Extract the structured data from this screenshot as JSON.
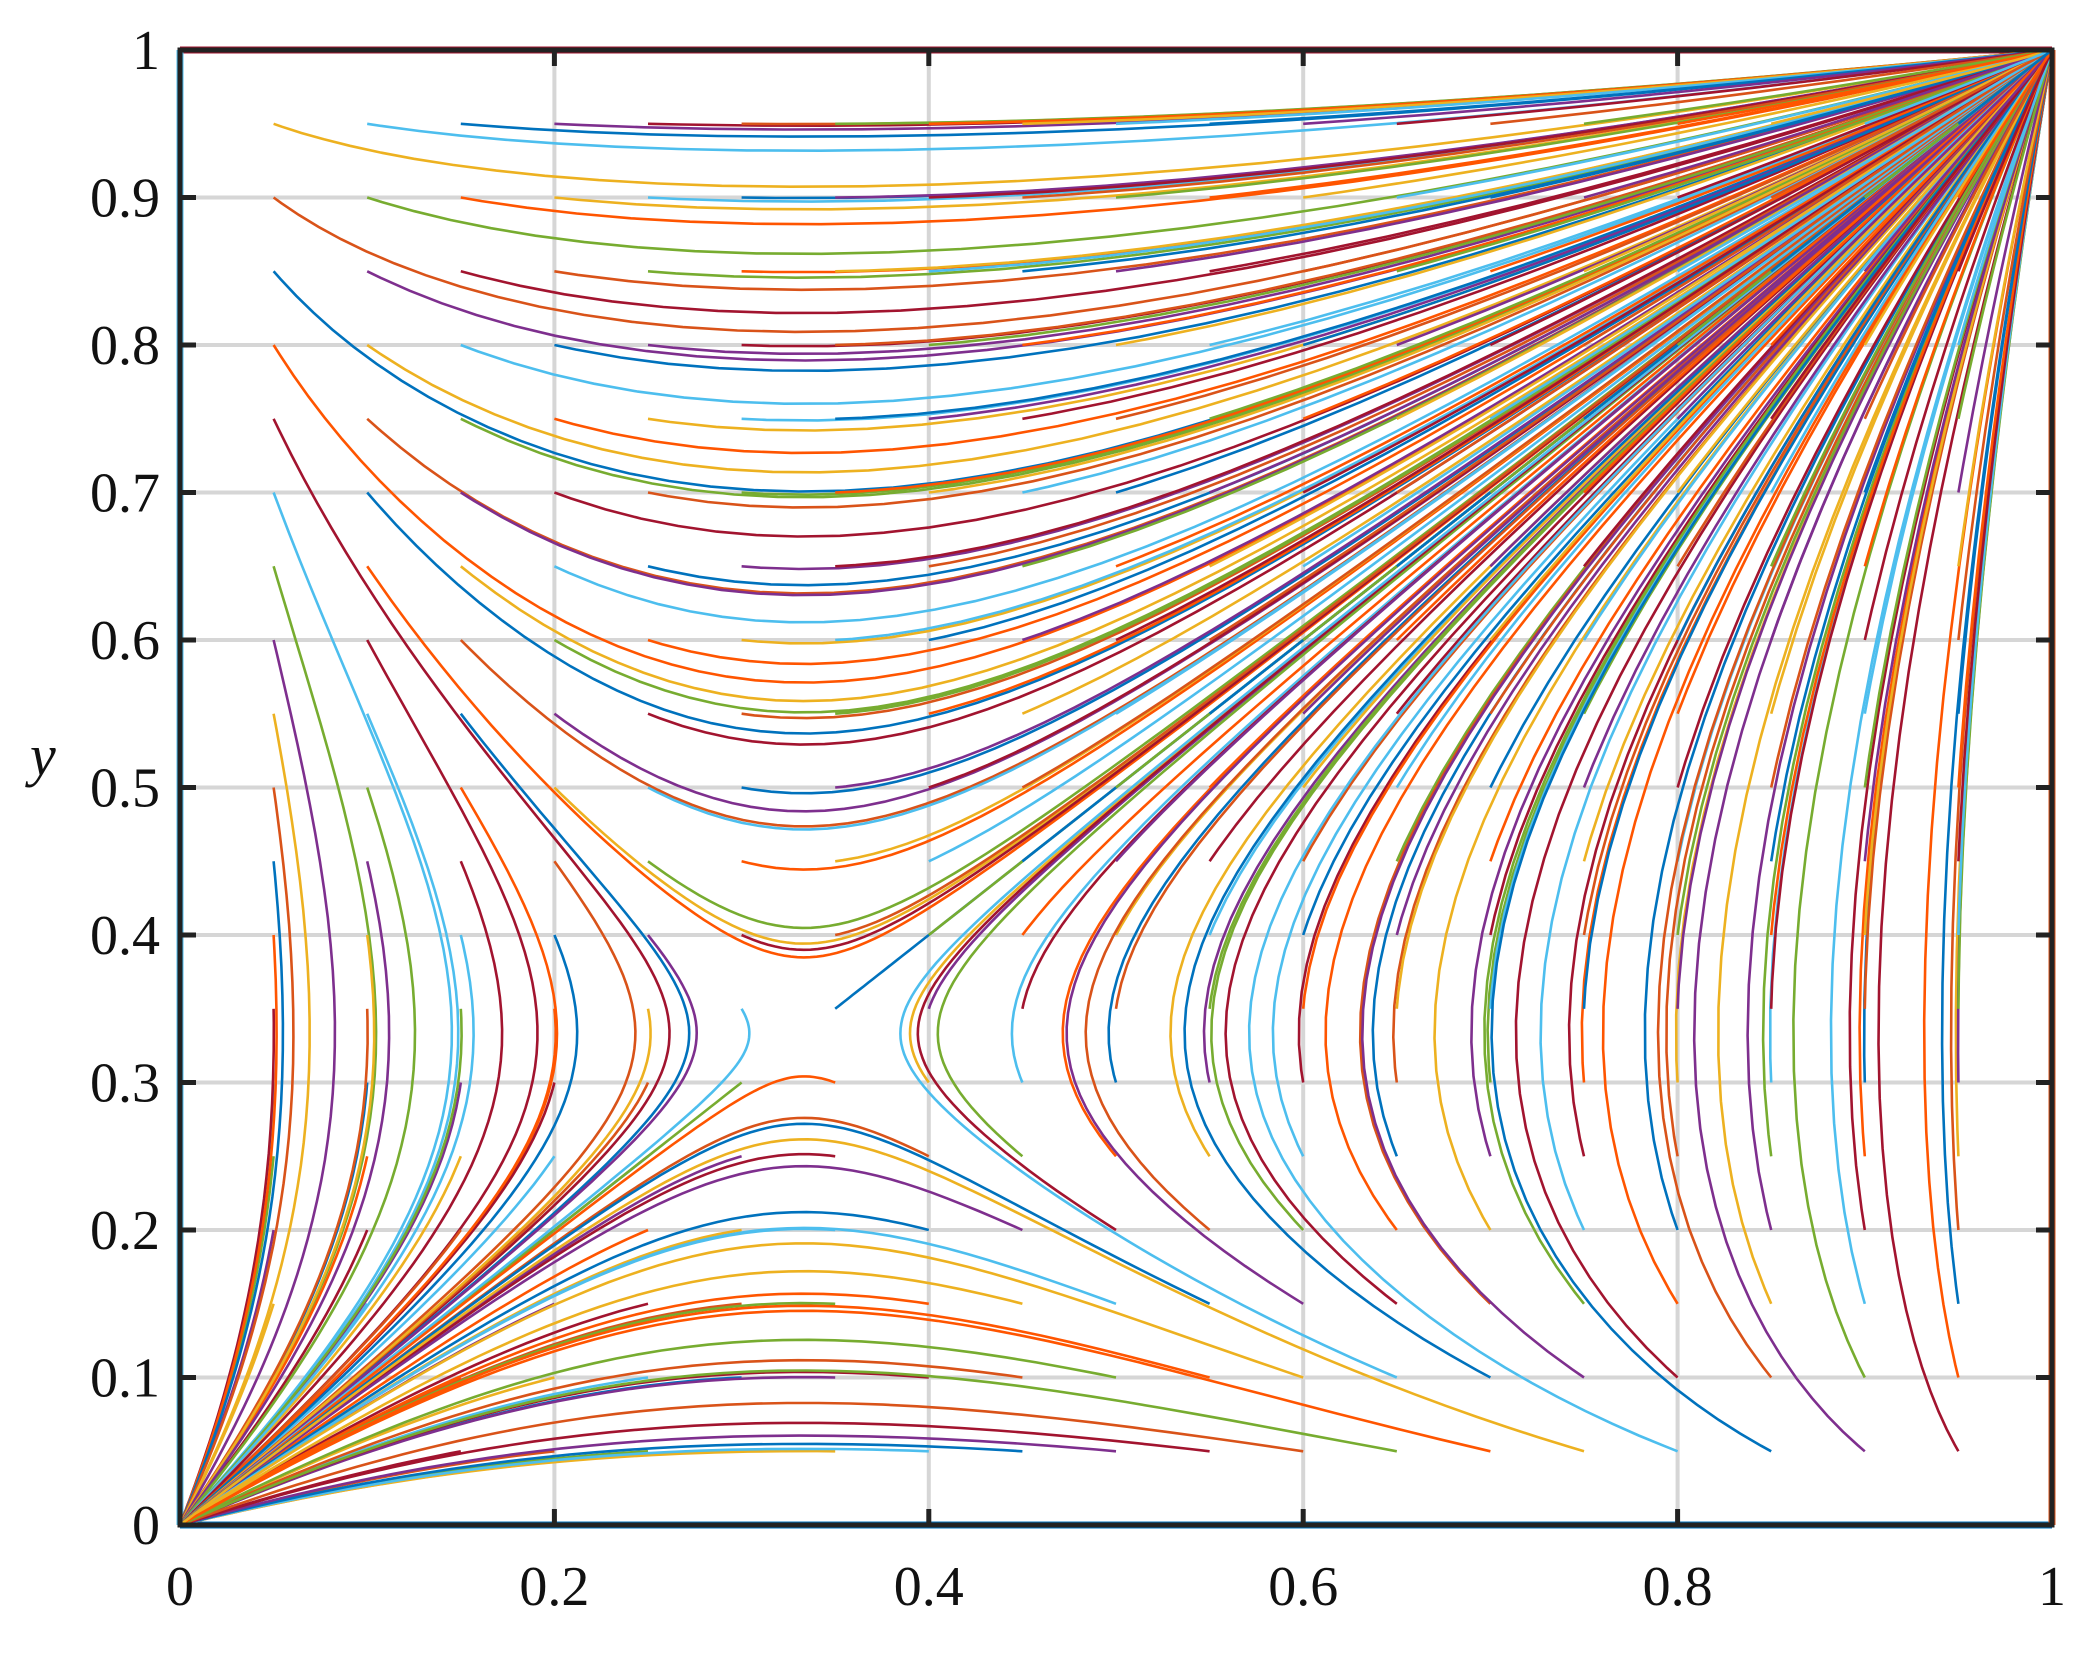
{
  "chart_data": {
    "type": "line",
    "title": "",
    "xlabel": "",
    "ylabel": "y",
    "xlim": [
      0,
      1
    ],
    "ylim": [
      0,
      1
    ],
    "xticks": [
      "0",
      "0.2",
      "0.4",
      "0.6",
      "0.8",
      "1"
    ],
    "yticks": [
      "0",
      "0.1",
      "0.2",
      "0.3",
      "0.4",
      "0.5",
      "0.6",
      "0.7",
      "0.8",
      "0.9",
      "1"
    ],
    "grid": true,
    "legend": "none",
    "description_of_series": "phase-plane trajectories of a 2-D replicator system",
    "saddle_point": [
      0.333,
      0.333
    ],
    "stable_points": [
      [
        0,
        0
      ],
      [
        1,
        1
      ]
    ],
    "starting_points": {
      "x": [
        0.05,
        0.1,
        0.15,
        0.2,
        0.25,
        0.3,
        0.35,
        0.4,
        0.45,
        0.5,
        0.55,
        0.6,
        0.65,
        0.7,
        0.75,
        0.8,
        0.85,
        0.9,
        0.95
      ],
      "y": [
        0.05,
        0.1,
        0.15,
        0.2,
        0.25,
        0.3,
        0.35,
        0.4,
        0.45,
        0.5,
        0.55,
        0.6,
        0.65,
        0.7,
        0.75,
        0.8,
        0.85,
        0.9,
        0.95
      ]
    },
    "colors": [
      "#0072BD",
      "#D95319",
      "#EDB120",
      "#7E2F8E",
      "#77AC30",
      "#4DBEEE",
      "#A2142F",
      "#FF5500"
    ]
  }
}
